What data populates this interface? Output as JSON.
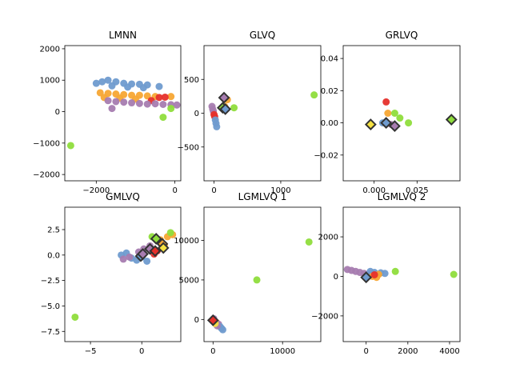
{
  "chart_data": [
    {
      "type": "scatter",
      "title": "LMNN",
      "xlim": [
        -2800,
        150
      ],
      "ylim": [
        -2200,
        2100
      ],
      "xticks": [
        {
          "v": -2000,
          "label": "−2000"
        },
        {
          "v": 0,
          "label": "0"
        }
      ],
      "yticks": [
        {
          "v": -2000,
          "label": "−2000"
        },
        {
          "v": -1000,
          "label": "−1000"
        },
        {
          "v": 0,
          "label": "0"
        },
        {
          "v": 1000,
          "label": "1000"
        },
        {
          "v": 2000,
          "label": "2000"
        }
      ],
      "points": [
        {
          "x": -2000,
          "y": 900,
          "c": "blue"
        },
        {
          "x": -1850,
          "y": 950,
          "c": "blue"
        },
        {
          "x": -1700,
          "y": 1000,
          "c": "blue"
        },
        {
          "x": -1500,
          "y": 950,
          "c": "blue"
        },
        {
          "x": -1300,
          "y": 900,
          "c": "blue"
        },
        {
          "x": -1100,
          "y": 880,
          "c": "blue"
        },
        {
          "x": -900,
          "y": 870,
          "c": "blue"
        },
        {
          "x": -700,
          "y": 850,
          "c": "blue"
        },
        {
          "x": -400,
          "y": 800,
          "c": "blue"
        },
        {
          "x": -1600,
          "y": 820,
          "c": "blue"
        },
        {
          "x": -1200,
          "y": 780,
          "c": "blue"
        },
        {
          "x": -800,
          "y": 760,
          "c": "blue"
        },
        {
          "x": -1900,
          "y": 600,
          "c": "orange"
        },
        {
          "x": -1700,
          "y": 580,
          "c": "orange"
        },
        {
          "x": -1500,
          "y": 560,
          "c": "orange"
        },
        {
          "x": -1300,
          "y": 540,
          "c": "orange"
        },
        {
          "x": -1100,
          "y": 520,
          "c": "orange"
        },
        {
          "x": -900,
          "y": 520,
          "c": "orange"
        },
        {
          "x": -700,
          "y": 500,
          "c": "orange"
        },
        {
          "x": -500,
          "y": 480,
          "c": "orange"
        },
        {
          "x": -1800,
          "y": 450,
          "c": "orange"
        },
        {
          "x": -1400,
          "y": 430,
          "c": "orange"
        },
        {
          "x": -1000,
          "y": 400,
          "c": "orange"
        },
        {
          "x": -100,
          "y": 480,
          "c": "orange"
        },
        {
          "x": -400,
          "y": 450,
          "c": "red"
        },
        {
          "x": -250,
          "y": 460,
          "c": "red"
        },
        {
          "x": -600,
          "y": 350,
          "c": "red"
        },
        {
          "x": -1700,
          "y": 350,
          "c": "purple"
        },
        {
          "x": -1500,
          "y": 320,
          "c": "purple"
        },
        {
          "x": -1300,
          "y": 300,
          "c": "purple"
        },
        {
          "x": -1100,
          "y": 280,
          "c": "purple"
        },
        {
          "x": -900,
          "y": 260,
          "c": "purple"
        },
        {
          "x": -700,
          "y": 240,
          "c": "purple"
        },
        {
          "x": -500,
          "y": 250,
          "c": "purple"
        },
        {
          "x": -300,
          "y": 230,
          "c": "purple"
        },
        {
          "x": -100,
          "y": 220,
          "c": "purple"
        },
        {
          "x": 50,
          "y": 210,
          "c": "purple"
        },
        {
          "x": -1600,
          "y": 100,
          "c": "purple"
        },
        {
          "x": -300,
          "y": -180,
          "c": "green"
        },
        {
          "x": -2650,
          "y": -1080,
          "c": "green"
        },
        {
          "x": -100,
          "y": 100,
          "c": "green"
        }
      ],
      "prototypes": []
    },
    {
      "type": "scatter",
      "title": "GLVQ",
      "xlim": [
        -150,
        1600
      ],
      "ylim": [
        -1000,
        1000
      ],
      "xticks": [
        {
          "v": 0,
          "label": "0"
        },
        {
          "v": 1000,
          "label": "1000"
        }
      ],
      "yticks": [
        {
          "v": -500,
          "label": "−500"
        },
        {
          "v": 0,
          "label": "0"
        },
        {
          "v": 500,
          "label": "500"
        }
      ],
      "points": [
        {
          "x": -30,
          "y": 100,
          "c": "purple"
        },
        {
          "x": -20,
          "y": 60,
          "c": "purple"
        },
        {
          "x": -10,
          "y": 30,
          "c": "purple"
        },
        {
          "x": 0,
          "y": -20,
          "c": "red"
        },
        {
          "x": 10,
          "y": -50,
          "c": "red"
        },
        {
          "x": 20,
          "y": -100,
          "c": "blue"
        },
        {
          "x": 30,
          "y": -150,
          "c": "blue"
        },
        {
          "x": 40,
          "y": -200,
          "c": "blue"
        },
        {
          "x": 200,
          "y": 200,
          "c": "orange"
        },
        {
          "x": 160,
          "y": 100,
          "c": "orange"
        },
        {
          "x": 300,
          "y": 80,
          "c": "green"
        },
        {
          "x": 1500,
          "y": 270,
          "c": "green"
        }
      ],
      "prototypes": [
        {
          "x": 150,
          "y": 230,
          "c": "purple"
        },
        {
          "x": 130,
          "y": 80,
          "c": "green"
        },
        {
          "x": 170,
          "y": 60,
          "c": "blue"
        }
      ]
    },
    {
      "type": "scatter",
      "title": "GRLVQ",
      "xlim": [
        -0.018,
        0.05
      ],
      "ylim": [
        -0.036,
        0.048
      ],
      "xticks": [
        {
          "v": 0.0,
          "label": "0.000"
        },
        {
          "v": 0.025,
          "label": "0.025"
        }
      ],
      "yticks": [
        {
          "v": -0.02,
          "label": "−0.02"
        },
        {
          "v": 0.0,
          "label": "0.00"
        },
        {
          "v": 0.02,
          "label": "0.02"
        },
        {
          "v": 0.04,
          "label": "0.04"
        }
      ],
      "points": [
        {
          "x": 0.007,
          "y": 0.013,
          "c": "red"
        },
        {
          "x": 0.008,
          "y": 0.006,
          "c": "orange"
        },
        {
          "x": 0.012,
          "y": 0.006,
          "c": "green"
        },
        {
          "x": 0.015,
          "y": 0.003,
          "c": "green"
        },
        {
          "x": 0.005,
          "y": 0.0,
          "c": "blue"
        },
        {
          "x": 0.01,
          "y": -0.001,
          "c": "purple"
        },
        {
          "x": 0.02,
          "y": 0.0,
          "c": "green"
        }
      ],
      "prototypes": [
        {
          "x": -0.002,
          "y": -0.001,
          "c": "yellow"
        },
        {
          "x": 0.007,
          "y": 0.0,
          "c": "blue"
        },
        {
          "x": 0.012,
          "y": -0.002,
          "c": "purple"
        },
        {
          "x": 0.045,
          "y": 0.002,
          "c": "green"
        }
      ]
    },
    {
      "type": "scatter",
      "title": "GMLVQ",
      "xlim": [
        -7.5,
        3.8
      ],
      "ylim": [
        -8.5,
        4.7
      ],
      "xticks": [
        {
          "v": -5,
          "label": "−5"
        },
        {
          "v": 0,
          "label": "0"
        }
      ],
      "yticks": [
        {
          "v": -7.5,
          "label": "−7.5"
        },
        {
          "v": -5.0,
          "label": "−5.0"
        },
        {
          "v": -2.5,
          "label": "−2.5"
        },
        {
          "v": 0.0,
          "label": "0.0"
        },
        {
          "v": 2.5,
          "label": "2.5"
        }
      ],
      "points": [
        {
          "x": -2.0,
          "y": 0.0,
          "c": "blue"
        },
        {
          "x": -1.5,
          "y": 0.2,
          "c": "blue"
        },
        {
          "x": -1.0,
          "y": -0.3,
          "c": "blue"
        },
        {
          "x": -0.5,
          "y": -0.5,
          "c": "blue"
        },
        {
          "x": 0.0,
          "y": -0.2,
          "c": "blue"
        },
        {
          "x": 0.5,
          "y": -0.6,
          "c": "blue"
        },
        {
          "x": -1.8,
          "y": -0.4,
          "c": "purple"
        },
        {
          "x": -1.2,
          "y": -0.2,
          "c": "purple"
        },
        {
          "x": -0.3,
          "y": 0.3,
          "c": "purple"
        },
        {
          "x": 0.8,
          "y": 0.9,
          "c": "purple"
        },
        {
          "x": 0.2,
          "y": 0.6,
          "c": "purple"
        },
        {
          "x": 1.5,
          "y": 0.4,
          "c": "red"
        },
        {
          "x": 1.2,
          "y": 0.1,
          "c": "red"
        },
        {
          "x": 2.0,
          "y": 0.8,
          "c": "red"
        },
        {
          "x": 2.5,
          "y": 1.8,
          "c": "orange"
        },
        {
          "x": 3.0,
          "y": 2.0,
          "c": "orange"
        },
        {
          "x": 2.2,
          "y": 1.0,
          "c": "orange"
        },
        {
          "x": 1.8,
          "y": 1.5,
          "c": "orange"
        },
        {
          "x": 2.8,
          "y": 2.2,
          "c": "green"
        },
        {
          "x": 1.0,
          "y": 1.8,
          "c": "green"
        },
        {
          "x": -6.5,
          "y": -6.1,
          "c": "green"
        }
      ],
      "prototypes": [
        {
          "x": -0.1,
          "y": -0.1,
          "c": "blue"
        },
        {
          "x": 0.1,
          "y": 0.1,
          "c": "purple"
        },
        {
          "x": 0.8,
          "y": 0.6,
          "c": "purple"
        },
        {
          "x": 1.3,
          "y": 0.4,
          "c": "red"
        },
        {
          "x": 2.0,
          "y": 1.1,
          "c": "orange"
        },
        {
          "x": 1.4,
          "y": 1.6,
          "c": "green"
        },
        {
          "x": 2.1,
          "y": 0.7,
          "c": "yellow"
        }
      ]
    },
    {
      "type": "scatter",
      "title": "LGMLVQ 1",
      "xlim": [
        -1300,
        15500
      ],
      "ylim": [
        -2800,
        14200
      ],
      "xticks": [
        {
          "v": 0,
          "label": "0"
        },
        {
          "v": 10000,
          "label": "10000"
        }
      ],
      "yticks": [
        {
          "v": 0,
          "label": "0"
        },
        {
          "v": 5000,
          "label": "5000"
        },
        {
          "v": 10000,
          "label": "10000"
        }
      ],
      "points": [
        {
          "x": 200,
          "y": -200,
          "c": "orange"
        },
        {
          "x": 500,
          "y": -400,
          "c": "orange"
        },
        {
          "x": 800,
          "y": -600,
          "c": "purple"
        },
        {
          "x": 1000,
          "y": -900,
          "c": "blue"
        },
        {
          "x": 1200,
          "y": -1100,
          "c": "blue"
        },
        {
          "x": 1400,
          "y": -1300,
          "c": "blue"
        },
        {
          "x": 600,
          "y": -800,
          "c": "purple"
        },
        {
          "x": 300,
          "y": -500,
          "c": "yellow"
        },
        {
          "x": 100,
          "y": 100,
          "c": "purple"
        },
        {
          "x": 6300,
          "y": 5000,
          "c": "green"
        },
        {
          "x": 13800,
          "y": 9800,
          "c": "green"
        }
      ],
      "prototypes": [
        {
          "x": 0,
          "y": -100,
          "c": "red"
        }
      ]
    },
    {
      "type": "scatter",
      "title": "LGMLVQ 2",
      "xlim": [
        -1100,
        4500
      ],
      "ylim": [
        -3300,
        3500
      ],
      "xticks": [
        {
          "v": 0,
          "label": "0"
        },
        {
          "v": 2000,
          "label": "2000"
        },
        {
          "v": 4000,
          "label": "4000"
        }
      ],
      "yticks": [
        {
          "v": -2000,
          "label": "−2000"
        },
        {
          "v": 0,
          "label": "0"
        },
        {
          "v": 2000,
          "label": "2000"
        }
      ],
      "points": [
        {
          "x": -900,
          "y": 350,
          "c": "purple"
        },
        {
          "x": -700,
          "y": 300,
          "c": "purple"
        },
        {
          "x": -500,
          "y": 250,
          "c": "purple"
        },
        {
          "x": -300,
          "y": 200,
          "c": "purple"
        },
        {
          "x": -100,
          "y": 150,
          "c": "purple"
        },
        {
          "x": 100,
          "y": 100,
          "c": "purple"
        },
        {
          "x": 200,
          "y": 250,
          "c": "blue"
        },
        {
          "x": 400,
          "y": 200,
          "c": "blue"
        },
        {
          "x": 700,
          "y": 180,
          "c": "blue"
        },
        {
          "x": 900,
          "y": 150,
          "c": "blue"
        },
        {
          "x": 300,
          "y": 0,
          "c": "orange"
        },
        {
          "x": 500,
          "y": -50,
          "c": "orange"
        },
        {
          "x": 600,
          "y": 100,
          "c": "orange"
        },
        {
          "x": 400,
          "y": 80,
          "c": "red"
        },
        {
          "x": 1400,
          "y": 250,
          "c": "green"
        },
        {
          "x": 4200,
          "y": 100,
          "c": "green"
        }
      ],
      "prototypes": [
        {
          "x": 0,
          "y": -50,
          "c": "blue"
        }
      ]
    }
  ],
  "palette": {
    "blue": "#6f9bcf",
    "orange": "#f7a634",
    "red": "#e6302b",
    "purple": "#a77cb0",
    "green": "#8fdd3c",
    "yellow": "#f5e243"
  }
}
